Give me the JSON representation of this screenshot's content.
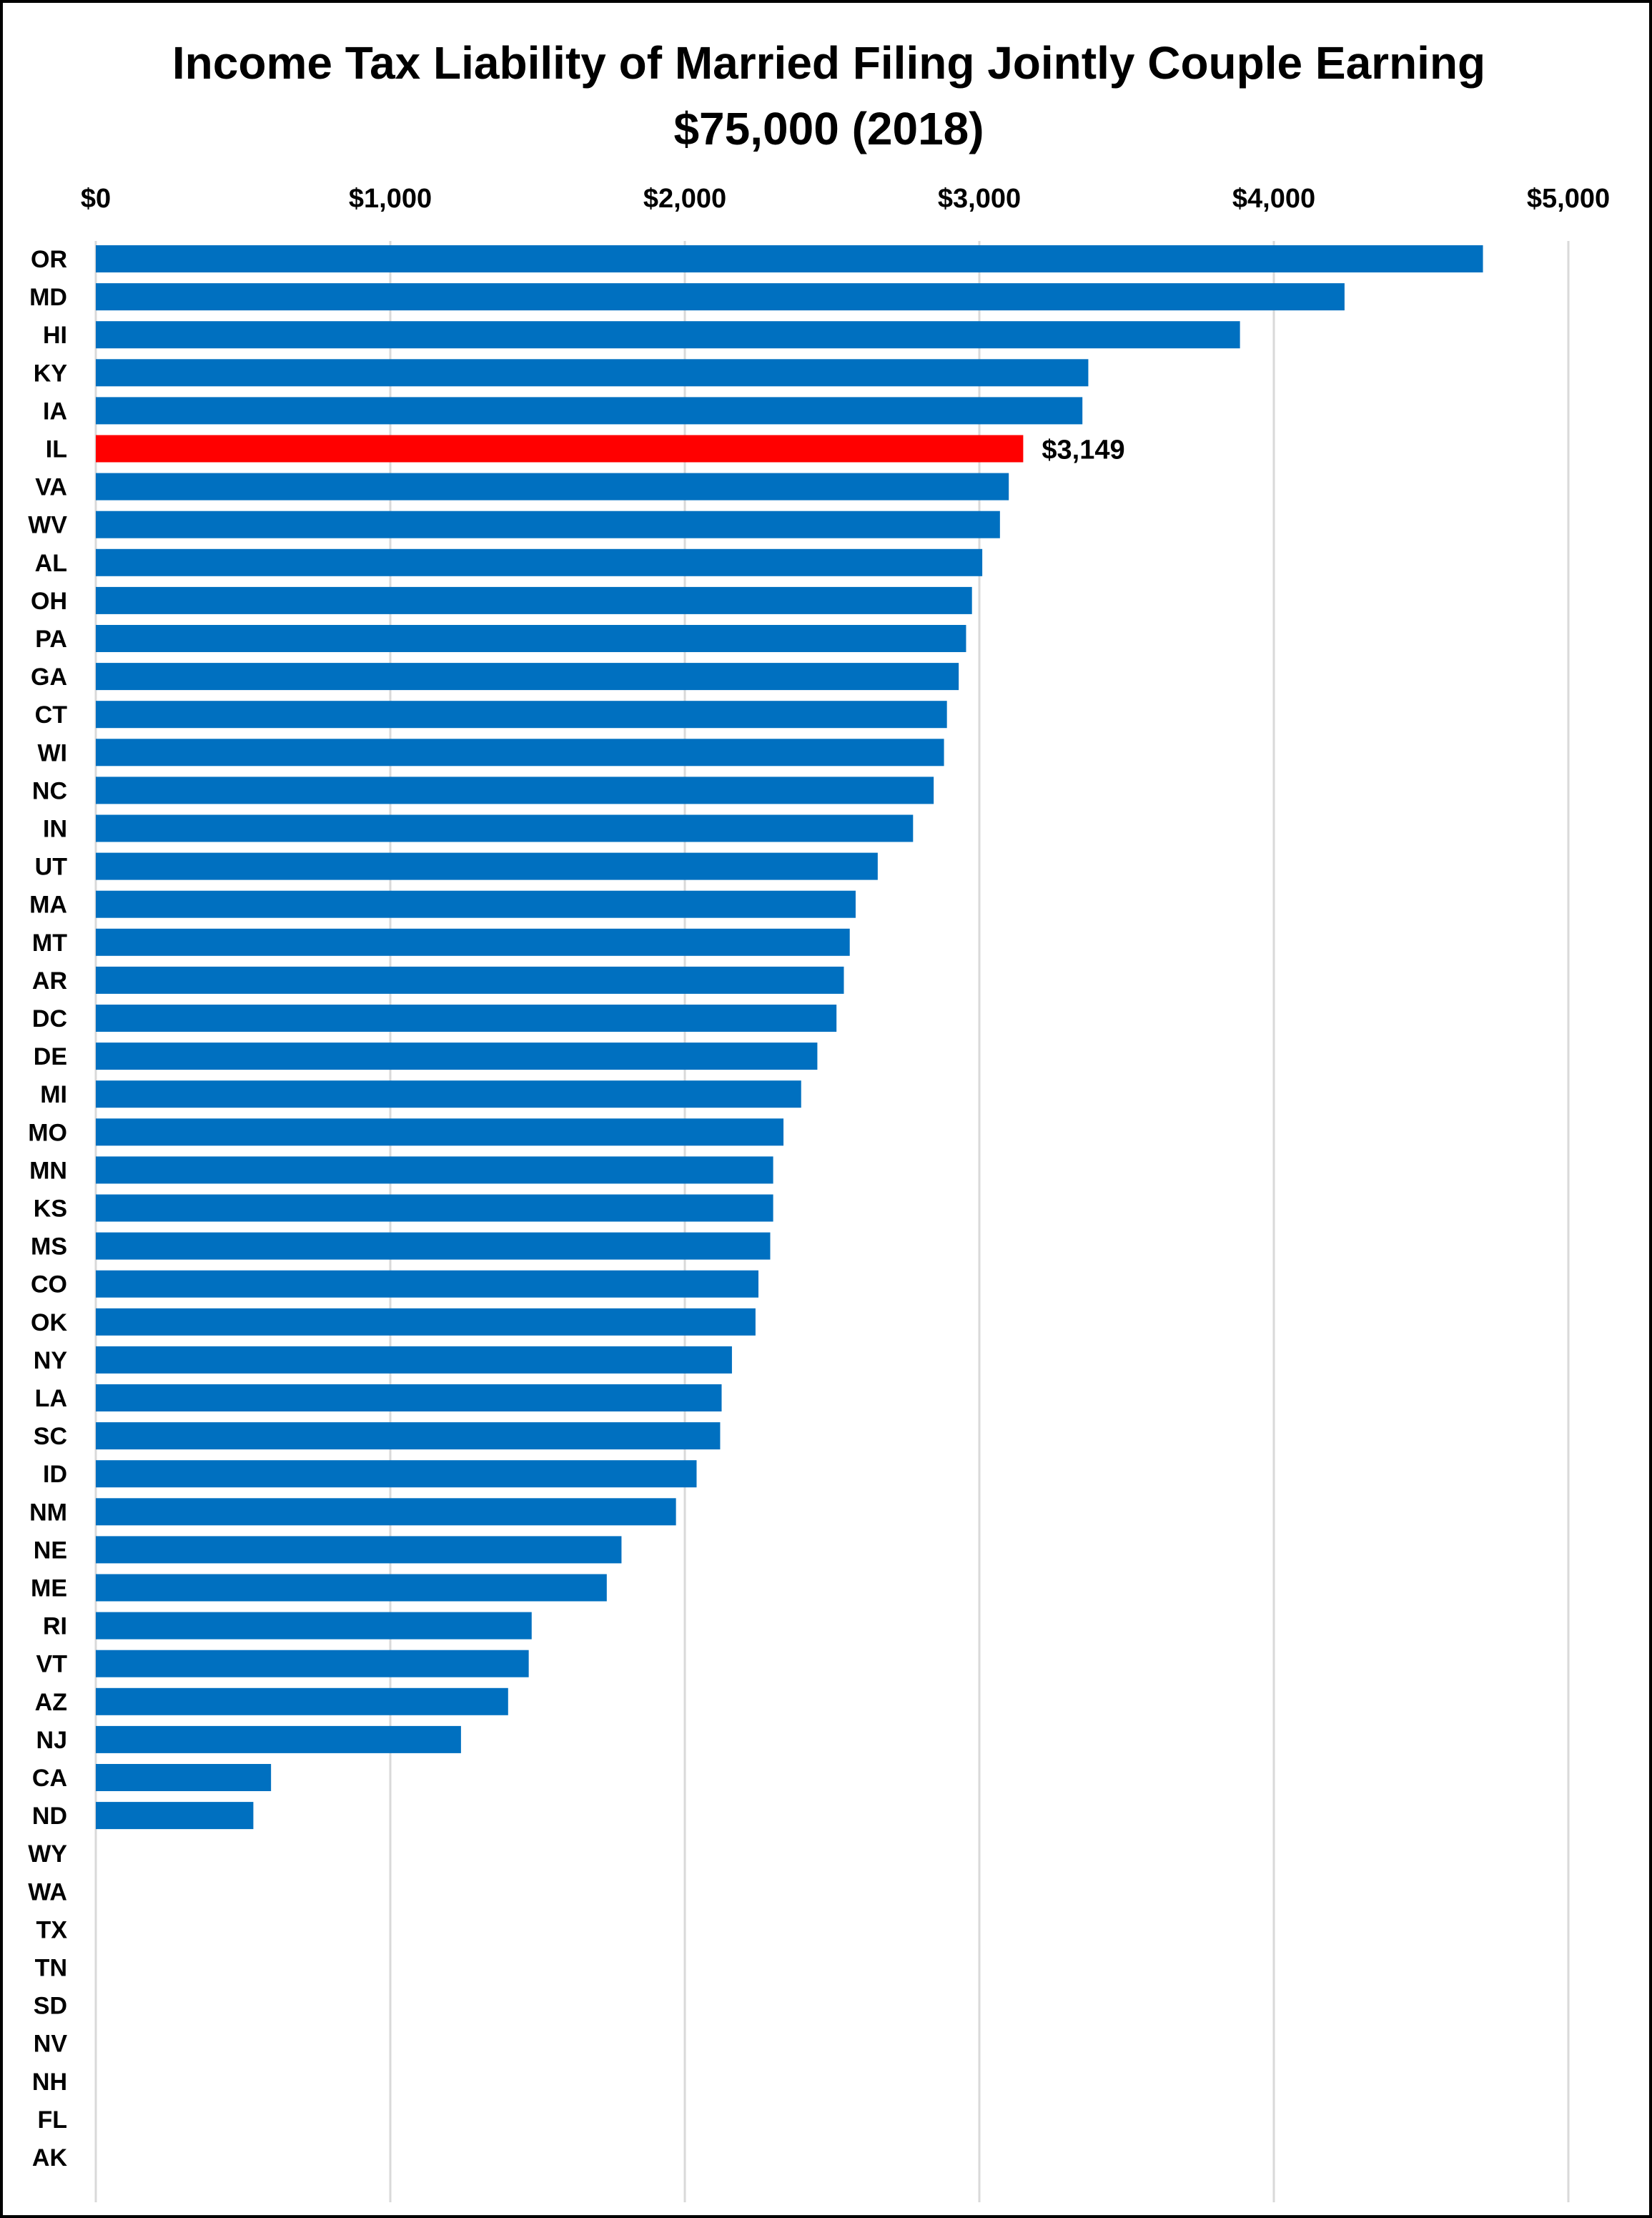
{
  "colors": {
    "bar": "#0070C0",
    "highlight": "#FF0000",
    "gridline": "#D9D9D9",
    "frame": "#000000"
  },
  "chart_data": {
    "type": "bar",
    "orientation": "horizontal",
    "title_lines": [
      "Income Tax Liability of Married Filing Jointly Couple Earning",
      "$75,000 (2018)"
    ],
    "xlabel": "",
    "ylabel": "",
    "xlim": [
      0,
      5000
    ],
    "x_ticks": [
      0,
      1000,
      2000,
      3000,
      4000,
      5000
    ],
    "x_tick_labels": [
      "$0",
      "$1,000",
      "$2,000",
      "$3,000",
      "$4,000",
      "$5,000"
    ],
    "x_axis_position": "top",
    "grid": true,
    "legend": "none",
    "categories": [
      "OR",
      "MD",
      "HI",
      "KY",
      "IA",
      "IL",
      "VA",
      "WV",
      "AL",
      "OH",
      "PA",
      "GA",
      "CT",
      "WI",
      "NC",
      "IN",
      "UT",
      "MA",
      "MT",
      "AR",
      "DC",
      "DE",
      "MI",
      "MO",
      "MN",
      "KS",
      "MS",
      "CO",
      "OK",
      "NY",
      "LA",
      "SC",
      "ID",
      "NM",
      "NE",
      "ME",
      "RI",
      "VT",
      "AZ",
      "NJ",
      "CA",
      "ND",
      "WY",
      "WA",
      "TX",
      "TN",
      "SD",
      "NV",
      "NH",
      "FL",
      "AK"
    ],
    "values": [
      4710,
      4240,
      3885,
      3370,
      3350,
      3149,
      3100,
      3070,
      3010,
      2975,
      2955,
      2930,
      2890,
      2880,
      2845,
      2775,
      2655,
      2580,
      2560,
      2540,
      2515,
      2450,
      2395,
      2335,
      2300,
      2300,
      2290,
      2250,
      2240,
      2160,
      2125,
      2120,
      2040,
      1970,
      1785,
      1735,
      1480,
      1470,
      1400,
      1240,
      595,
      535,
      0,
      0,
      0,
      0,
      0,
      0,
      0,
      0,
      0
    ],
    "highlight": {
      "category": "IL",
      "value": 3149,
      "label": "$3,149"
    }
  }
}
